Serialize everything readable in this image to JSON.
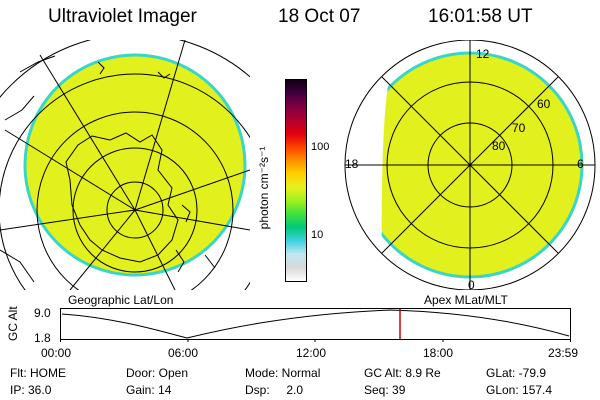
{
  "header": {
    "instrument": "Ultraviolet Imager",
    "date": "18 Oct 07",
    "time": "16:01:58 UT"
  },
  "colorbar": {
    "unit_label": "photon cm⁻²s⁻¹",
    "tick_100": "100",
    "tick_10": "10",
    "colors": [
      "#ffffff",
      "#d8d8d8",
      "#c0e8f0",
      "#40d0e0",
      "#00c878",
      "#40e040",
      "#a0f020",
      "#e8f020",
      "#ffd000",
      "#ff9000",
      "#ff4000",
      "#e00010",
      "#b00030",
      "#800040",
      "#400040",
      "#100010"
    ]
  },
  "panels": {
    "geographic_label": "Geographic Lat/Lon",
    "apex_label": "Apex MLat/MLT",
    "apex": {
      "mlt_top": "12",
      "mlt_left": "18",
      "mlt_right": "6",
      "mlt_bottom": "0",
      "lat_60": "60",
      "lat_70": "70",
      "lat_80": "80"
    },
    "fill_color": "#e2f01e",
    "edge_color": "#38d6c8"
  },
  "orbit": {
    "axis_label": "GC Alt",
    "y_top": "9.0",
    "y_bottom": "1.8",
    "x_ticks": [
      "00:00",
      "06:00",
      "12:00",
      "18:00",
      "23:59"
    ],
    "marker_color": "#cc0000"
  },
  "status": {
    "flt": "Flt: HOME",
    "ip": "IP: 36.0",
    "door": "Door: Open",
    "gain": "Gain: 14",
    "mode": "Mode: Normal",
    "dsp": "Dsp:     2.0",
    "gcalt": "GC Alt: 8.9 Re",
    "seq": "Seq: 39",
    "glat": "GLat: -79.9",
    "glon": "GLon: 157.4"
  }
}
